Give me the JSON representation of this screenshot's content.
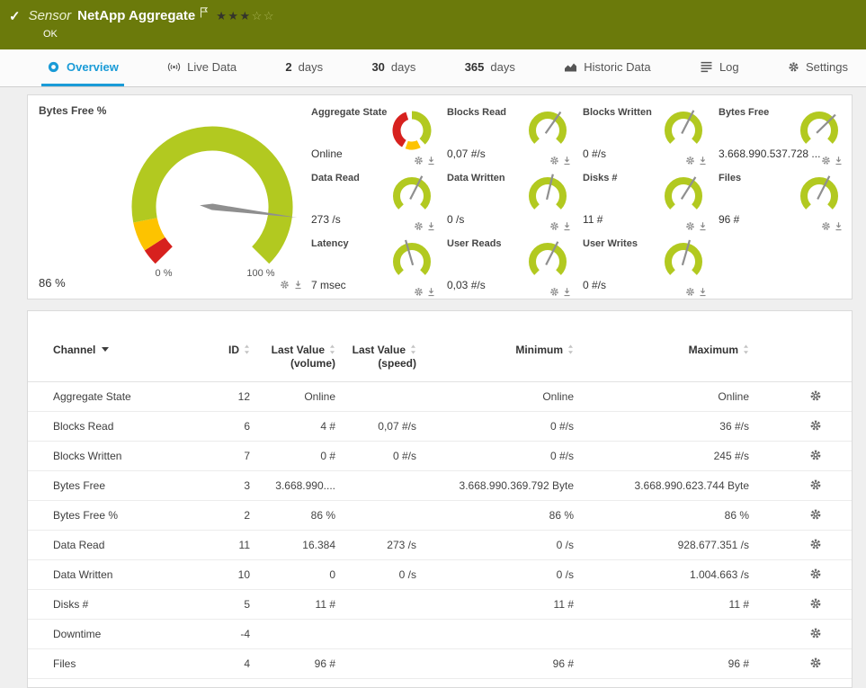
{
  "colors": {
    "header_bg": "#6b7a0b",
    "accent_blue": "#1a9bd7",
    "gauge_green": "#b2c920",
    "gauge_yellow": "#fdc300",
    "gauge_red": "#d7211e"
  },
  "icons": {
    "check": "✓"
  },
  "header": {
    "kind": "Sensor",
    "title": "NetApp Aggregate",
    "status": "OK",
    "stars": {
      "filled": 3,
      "total": 5
    }
  },
  "tabs": [
    {
      "label": "Overview"
    },
    {
      "label": "Live Data"
    },
    {
      "num": "2",
      "label": "days"
    },
    {
      "num": "30",
      "label": "days"
    },
    {
      "num": "365",
      "label": "days"
    },
    {
      "label": "Historic Data"
    },
    {
      "label": "Log"
    },
    {
      "label": "Settings"
    }
  ],
  "big_gauge": {
    "label": "Bytes Free %",
    "value": "86 %",
    "min": "0 %",
    "max": "100 %",
    "needle": 0.86,
    "segments": [
      [
        0,
        0.045,
        "gauge_red"
      ],
      [
        0.045,
        0.125,
        "gauge_yellow"
      ],
      [
        0.125,
        1,
        "gauge_green"
      ]
    ]
  },
  "gauges": [
    {
      "label": "Aggregate State",
      "value": "Online",
      "type": "donut",
      "segments": [
        [
          0.0,
          0.38,
          "gauge_green"
        ],
        [
          0.425,
          0.555,
          "gauge_yellow"
        ],
        [
          0.585,
          0.95,
          "gauge_red"
        ]
      ]
    },
    {
      "label": "Blocks Read",
      "value": "0,07 #/s",
      "type": "needle",
      "needle": 0.63
    },
    {
      "label": "Blocks Written",
      "value": "0 #/s",
      "type": "needle",
      "needle": 0.6
    },
    {
      "label": "Bytes Free",
      "value": "3.668.990.537.728 ...",
      "type": "needle",
      "needle": 0.67
    },
    {
      "label": "Data Read",
      "value": "273 /s",
      "type": "needle",
      "needle": 0.6
    },
    {
      "label": "Data Written",
      "value": "0 /s",
      "type": "needle",
      "needle": 0.55
    },
    {
      "label": "Disks #",
      "value": "11 #",
      "type": "needle",
      "needle": 0.62
    },
    {
      "label": "Files",
      "value": "96 #",
      "type": "needle",
      "needle": 0.6
    },
    {
      "label": "Latency",
      "value": "7 msec",
      "type": "needle",
      "needle": 0.44
    },
    {
      "label": "User Reads",
      "value": "0,03 #/s",
      "type": "needle",
      "needle": 0.6
    },
    {
      "label": "User Writes",
      "value": "0 #/s",
      "type": "needle",
      "needle": 0.56
    }
  ],
  "table": {
    "columns": {
      "channel": "Channel",
      "id": "ID",
      "last_value_volume": {
        "line1": "Last Value",
        "line2": "(volume)"
      },
      "last_value_speed": {
        "line1": "Last Value",
        "line2": "(speed)"
      },
      "minimum": "Minimum",
      "maximum": "Maximum"
    },
    "rows": [
      {
        "channel": "Aggregate State",
        "id": "12",
        "vol": "Online",
        "speed": "",
        "min": "Online",
        "max": "Online"
      },
      {
        "channel": "Blocks Read",
        "id": "6",
        "vol": "4 #",
        "speed": "0,07 #/s",
        "min": "0 #/s",
        "max": "36 #/s"
      },
      {
        "channel": "Blocks Written",
        "id": "7",
        "vol": "0 #",
        "speed": "0 #/s",
        "min": "0 #/s",
        "max": "245 #/s"
      },
      {
        "channel": "Bytes Free",
        "id": "3",
        "vol": "3.668.990....",
        "speed": "",
        "min": "3.668.990.369.792 Byte",
        "max": "3.668.990.623.744 Byte"
      },
      {
        "channel": "Bytes Free %",
        "id": "2",
        "vol": "86 %",
        "speed": "",
        "min": "86 %",
        "max": "86 %"
      },
      {
        "channel": "Data Read",
        "id": "11",
        "vol": "16.384",
        "speed": "273 /s",
        "min": "0 /s",
        "max": "928.677.351 /s"
      },
      {
        "channel": "Data Written",
        "id": "10",
        "vol": "0",
        "speed": "0 /s",
        "min": "0 /s",
        "max": "1.004.663 /s"
      },
      {
        "channel": "Disks #",
        "id": "5",
        "vol": "11 #",
        "speed": "",
        "min": "11 #",
        "max": "11 #"
      },
      {
        "channel": "Downtime",
        "id": "-4",
        "vol": "",
        "speed": "",
        "min": "",
        "max": ""
      },
      {
        "channel": "Files",
        "id": "4",
        "vol": "96 #",
        "speed": "",
        "min": "96 #",
        "max": "96 #"
      }
    ]
  }
}
